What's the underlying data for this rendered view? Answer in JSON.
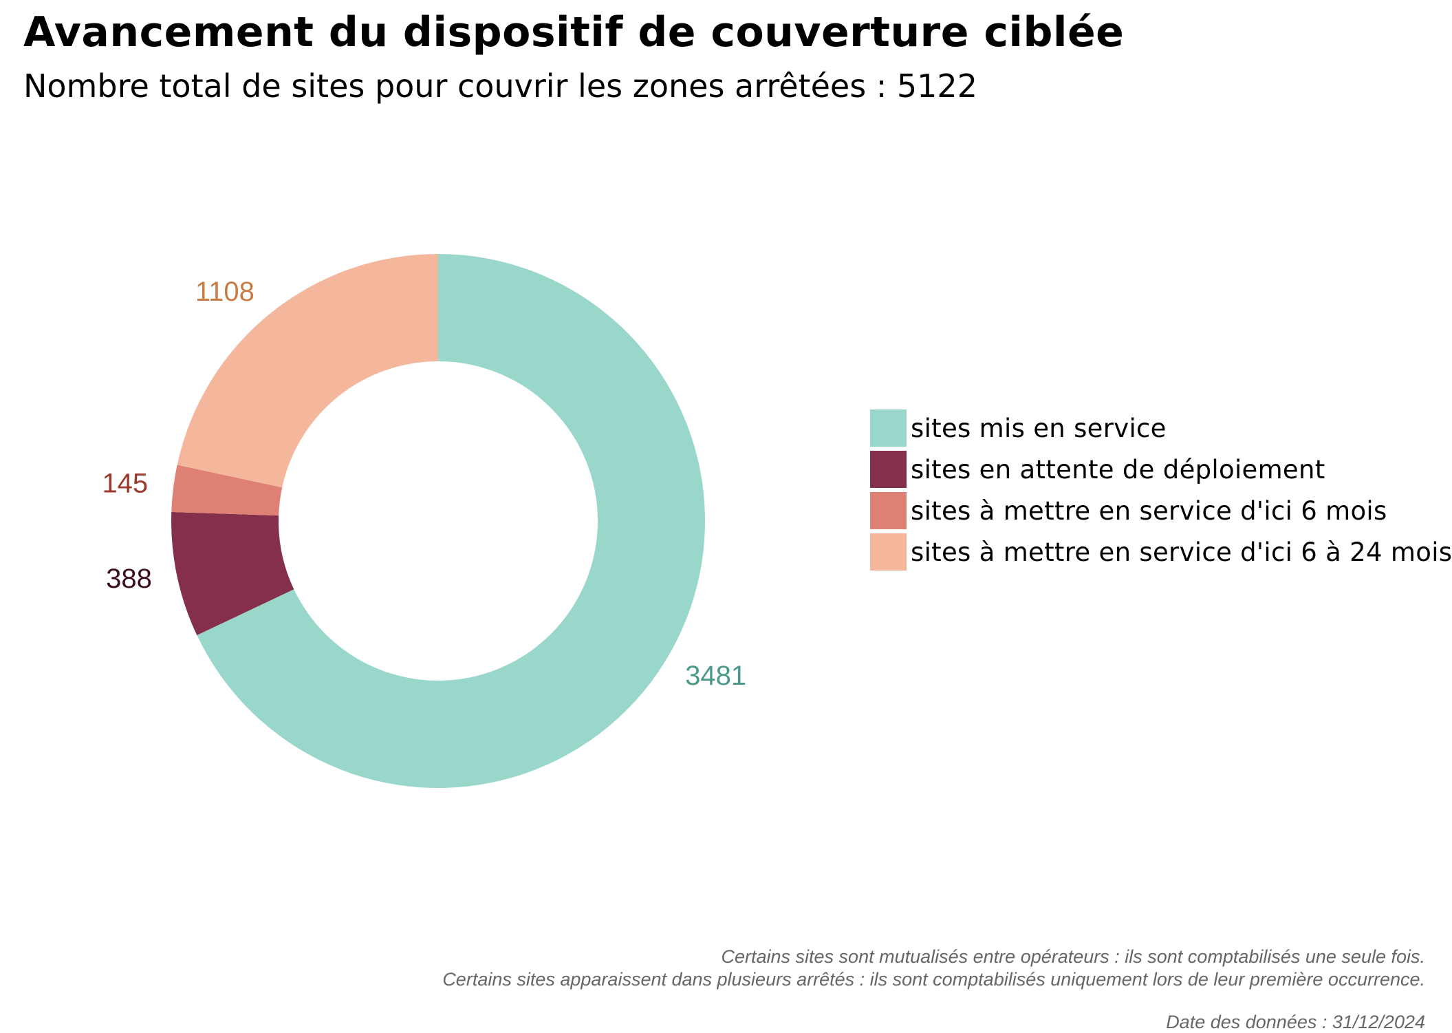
{
  "title": "Avancement du dispositif de couverture ciblée",
  "subtitle": "Nombre total de sites pour couvrir les zones arrêtées : 5122",
  "chart_data": {
    "type": "pie",
    "donut": true,
    "start_angle_deg": 0,
    "direction": "clockwise",
    "categories": [
      "sites mis en service",
      "sites en attente de déploiement",
      "sites à mettre en service d'ici 6 mois",
      "sites à mettre en service d'ici 6 à 24 mois"
    ],
    "values": [
      3481,
      388,
      145,
      1108
    ],
    "colors": [
      "#9AD7CB",
      "#85304A",
      "#DE8073",
      "#F5B79C"
    ],
    "label_colors": [
      "#4A9A8A",
      "#3A0E18",
      "#9B3A2C",
      "#C97C45"
    ],
    "legend_position": "right"
  },
  "notes": [
    "Certains sites sont mutualisés entre opérateurs : ils sont comptabilisés une seule fois.",
    "Certains sites apparaissent dans plusieurs arrêtés : ils sont comptabilisés uniquement lors de leur première occurrence."
  ],
  "source_date": "Date des données : 31/12/2024"
}
